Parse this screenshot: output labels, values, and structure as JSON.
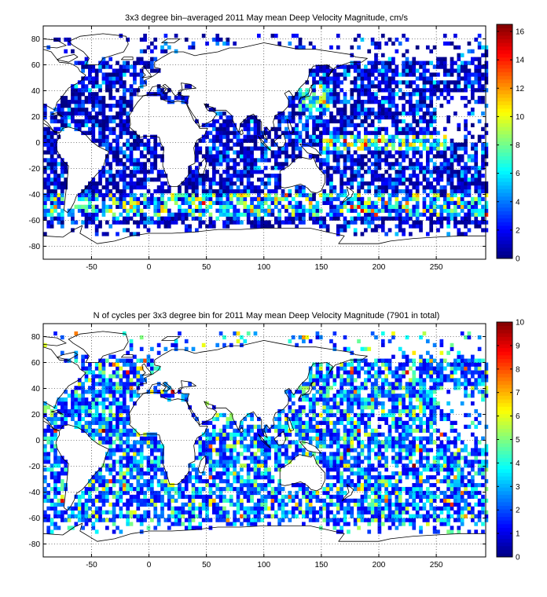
{
  "chart_data": [
    {
      "type": "heatmap",
      "title": "3x3 degree bin–averaged 2011 May mean Deep Velocity Magnitude, cm/s",
      "xlabel": "",
      "ylabel": "",
      "xlim": [
        -92,
        293
      ],
      "ylim": [
        -90,
        90
      ],
      "xticks": [
        -50,
        0,
        50,
        100,
        150,
        200,
        250
      ],
      "yticks": [
        -80,
        -60,
        -40,
        -20,
        0,
        20,
        40,
        60,
        80
      ],
      "grid": true,
      "colormap": "jet",
      "colorbar": {
        "min": 0,
        "max": 16.5,
        "ticks": [
          0,
          2,
          4,
          6,
          8,
          10,
          12,
          14,
          16
        ],
        "placement": "right"
      },
      "bin_size_deg": 3,
      "note_values": "dense field of 3x3 degree bins, dominated by low values (blue) with high values (red) along the equatorial Pacific and the Southern Ocean"
    },
    {
      "type": "heatmap",
      "title": "N of cycles per 3x3 degree bin for 2011 May mean Deep Velocity Magnitude (7901 in total)",
      "xlabel": "",
      "ylabel": "",
      "xlim": [
        -92,
        293
      ],
      "ylim": [
        -90,
        90
      ],
      "xticks": [
        -50,
        0,
        50,
        100,
        150,
        200,
        250
      ],
      "yticks": [
        -80,
        -60,
        -40,
        -20,
        0,
        20,
        40,
        60,
        80
      ],
      "grid": true,
      "colormap": "jet",
      "colorbar": {
        "min": 0,
        "max": 10,
        "ticks": [
          0,
          1,
          2,
          3,
          4,
          5,
          6,
          7,
          8,
          9,
          10
        ],
        "placement": "right"
      },
      "bin_size_deg": 3,
      "total_cycles": 7901
    }
  ]
}
